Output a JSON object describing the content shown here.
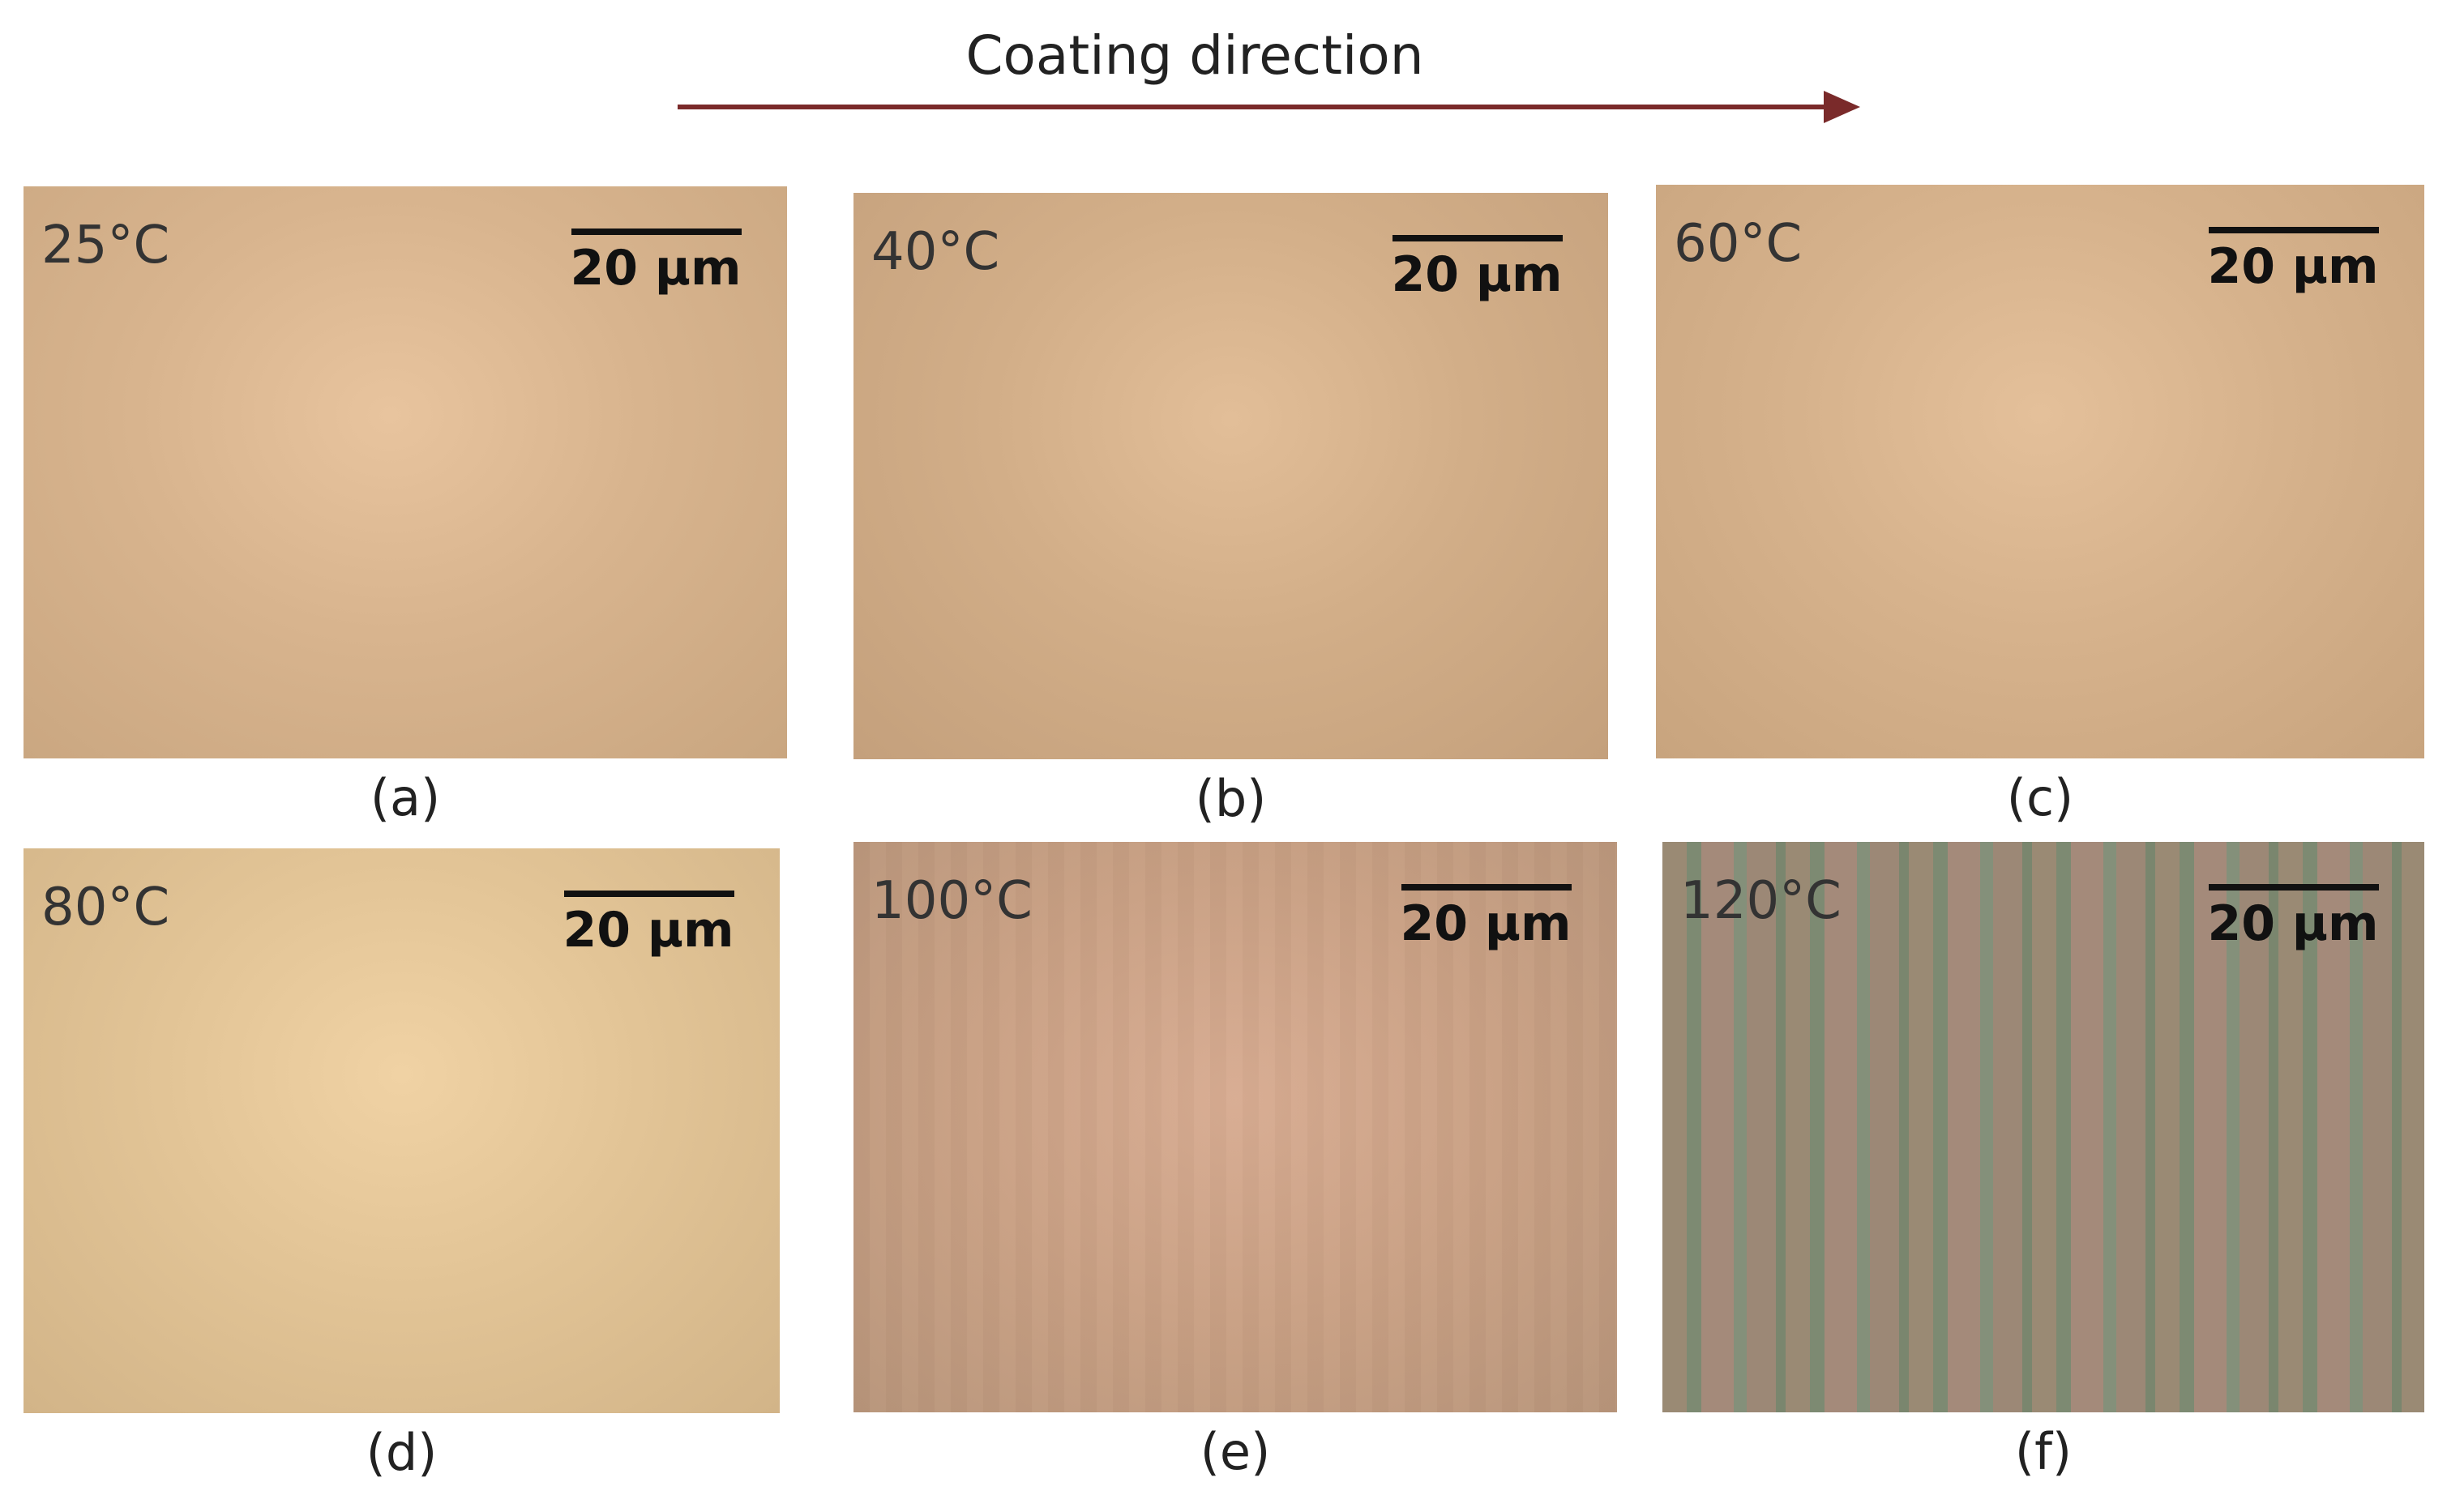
{
  "header": {
    "title": "Coating direction"
  },
  "panels": [
    {
      "temperature": "25°C",
      "scale_bar": "20 µm",
      "caption": "(a)"
    },
    {
      "temperature": "40°C",
      "scale_bar": "20 µm",
      "caption": "(b)"
    },
    {
      "temperature": "60°C",
      "scale_bar": "20 µm",
      "caption": "(c)"
    },
    {
      "temperature": "80°C",
      "scale_bar": "20 µm",
      "caption": "(d)"
    },
    {
      "temperature": "100°C",
      "scale_bar": "20 µm",
      "caption": "(e)"
    },
    {
      "temperature": "120°C",
      "scale_bar": "20 µm",
      "caption": "(f)"
    }
  ]
}
